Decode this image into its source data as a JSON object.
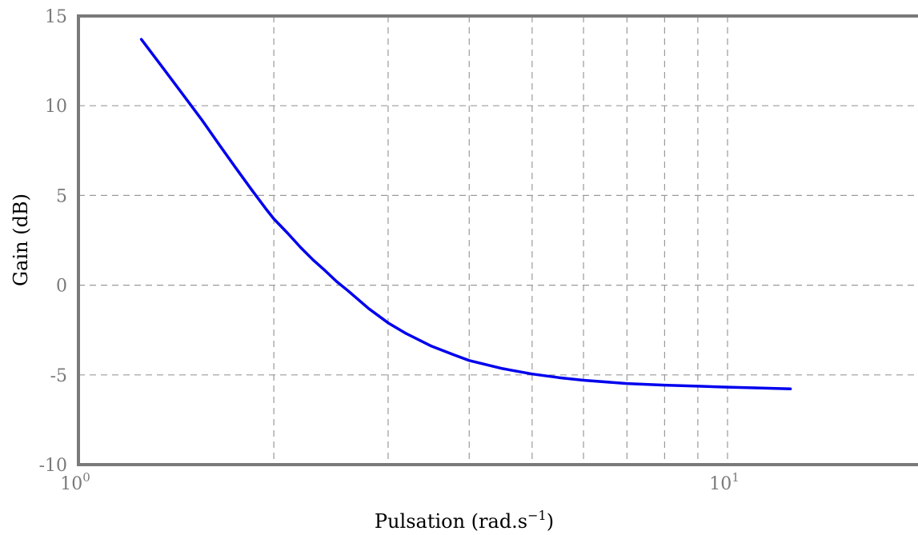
{
  "chart_data": {
    "type": "line",
    "xlabel": "Pulsation (rad.s",
    "xlabel_sup": "−1",
    "xlabel_close": ")",
    "ylabel": "Gain (dB)",
    "x_scale": "log",
    "xlim": [
      1,
      20
    ],
    "ylim": [
      -10,
      15
    ],
    "grid": true,
    "x_minor_ticks": [
      2,
      3,
      4,
      5,
      6,
      7,
      8,
      9
    ],
    "x_tick_labels": [
      {
        "base": "10",
        "exp": "0"
      },
      {
        "base": "10",
        "exp": "1"
      }
    ],
    "y_ticks": [
      -10,
      -5,
      0,
      5,
      10,
      15
    ],
    "y_tick_labels": [
      "-10",
      "-5",
      "0",
      "5",
      "10",
      "15"
    ],
    "series": [
      {
        "color": "#0000ee",
        "x": [
          1.25,
          1.35,
          1.45,
          1.55,
          1.65,
          1.75,
          1.85,
          1.95,
          2.0,
          2.1,
          2.2,
          2.3,
          2.4,
          2.5,
          2.6,
          2.8,
          3.0,
          3.2,
          3.5,
          3.8,
          4.0,
          4.5,
          5.0,
          5.5,
          6.0,
          7.0,
          8.0,
          9.0,
          10.0,
          11.0,
          12.5
        ],
        "y": [
          13.7,
          12.1,
          10.6,
          9.2,
          7.8,
          6.5,
          5.3,
          4.2,
          3.7,
          2.9,
          2.1,
          1.4,
          0.8,
          0.2,
          -0.3,
          -1.3,
          -2.1,
          -2.7,
          -3.4,
          -3.9,
          -4.2,
          -4.65,
          -4.95,
          -5.15,
          -5.3,
          -5.48,
          -5.57,
          -5.63,
          -5.68,
          -5.72,
          -5.78
        ]
      }
    ]
  }
}
